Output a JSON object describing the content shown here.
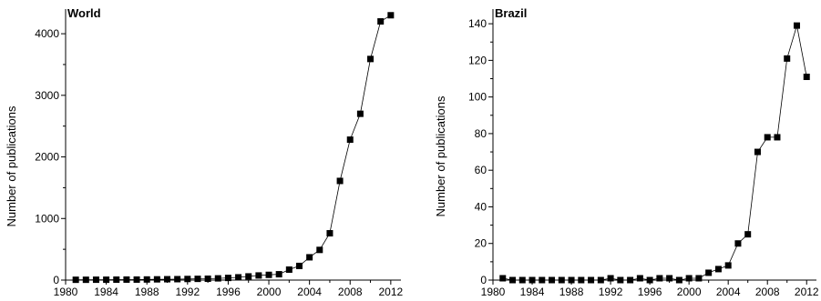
{
  "chart_data": [
    {
      "type": "line",
      "title": "World",
      "xlabel": "",
      "ylabel": "Number of publications",
      "xlim": [
        1980,
        2013
      ],
      "ylim": [
        0,
        4400
      ],
      "xticks": [
        1980,
        1984,
        1988,
        1992,
        1996,
        2000,
        2004,
        2008,
        2012
      ],
      "yticks": [
        0,
        1000,
        2000,
        3000,
        4000
      ],
      "grid": false,
      "marker": "square",
      "series": [
        {
          "x": [
            1981,
            1982,
            1983,
            1984,
            1985,
            1986,
            1987,
            1988,
            1989,
            1990,
            1991,
            1992,
            1993,
            1994,
            1995,
            1996,
            1997,
            1998,
            1999,
            2000,
            2001,
            2002,
            2003,
            2004,
            2005,
            2006,
            2007,
            2008,
            2009,
            2010,
            2011,
            2012
          ],
          "y": [
            5,
            5,
            6,
            6,
            7,
            8,
            8,
            10,
            12,
            14,
            15,
            18,
            20,
            22,
            28,
            35,
            45,
            60,
            75,
            85,
            95,
            170,
            230,
            370,
            490,
            760,
            1610,
            2280,
            2700,
            3590,
            4200,
            4300
          ]
        }
      ]
    },
    {
      "type": "line",
      "title": "Brazil",
      "xlabel": "",
      "ylabel": "Number of publications",
      "xlim": [
        1980,
        2013
      ],
      "ylim": [
        0,
        148
      ],
      "xticks": [
        1980,
        1984,
        1988,
        1992,
        1996,
        2000,
        2004,
        2008,
        2012
      ],
      "yticks": [
        0,
        20,
        40,
        60,
        80,
        100,
        120,
        140
      ],
      "grid": false,
      "marker": "square",
      "series": [
        {
          "x": [
            1981,
            1982,
            1983,
            1984,
            1985,
            1986,
            1987,
            1988,
            1989,
            1990,
            1991,
            1992,
            1993,
            1994,
            1995,
            1996,
            1997,
            1998,
            1999,
            2000,
            2001,
            2002,
            2003,
            2004,
            2005,
            2006,
            2007,
            2008,
            2009,
            2010,
            2011,
            2012
          ],
          "y": [
            1,
            0,
            0,
            0,
            0,
            0,
            0,
            0,
            0,
            0,
            0,
            1,
            0,
            0,
            1,
            0,
            1,
            1,
            0,
            1,
            1,
            4,
            6,
            8,
            20,
            25,
            70,
            78,
            78,
            121,
            139,
            111
          ]
        }
      ]
    }
  ]
}
